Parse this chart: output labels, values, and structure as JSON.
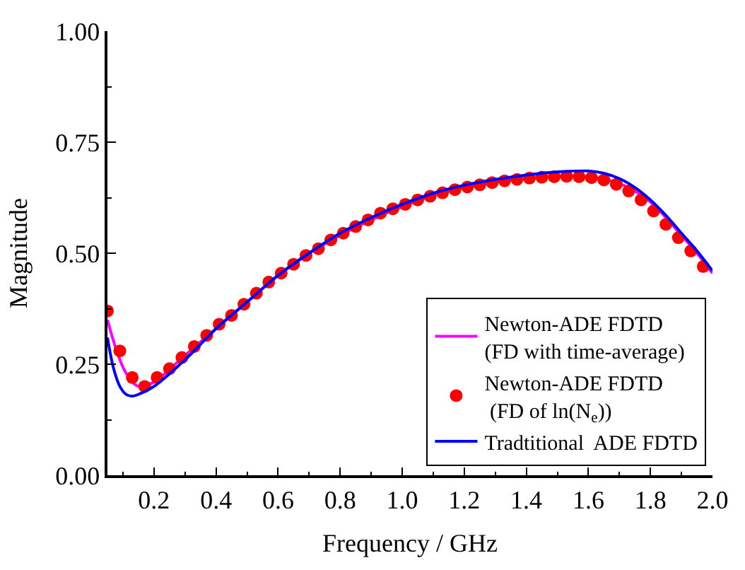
{
  "chart_data": {
    "type": "line",
    "xlabel": "Frequency / GHz",
    "ylabel": "Magnitude",
    "xlim": [
      0.05,
      2.0
    ],
    "xticks": [
      {
        "value": 0.2,
        "label": "0.2"
      },
      {
        "value": 0.4,
        "label": "0.4"
      },
      {
        "value": 0.6,
        "label": "0.6"
      },
      {
        "value": 0.8,
        "label": "0.8"
      },
      {
        "value": 1.0,
        "label": "1.0"
      },
      {
        "value": 1.2,
        "label": "1.2"
      },
      {
        "value": 1.4,
        "label": "1.4"
      },
      {
        "value": 1.6,
        "label": "1.6"
      },
      {
        "value": 1.8,
        "label": "1.8"
      },
      {
        "value": 2.0,
        "label": "2.0"
      }
    ],
    "ylim": [
      0,
      1
    ],
    "yticks": [
      {
        "value": 0,
        "label": "0.00"
      },
      {
        "value": 0.25,
        "label": "0.25"
      },
      {
        "value": 0.5,
        "label": "0.50"
      },
      {
        "value": 0.75,
        "label": "0.75"
      },
      {
        "value": 1.0,
        "label": "1.00"
      }
    ],
    "grid": false,
    "legend": "bottom right",
    "series": [
      {
        "name": "Newton-ADE FDTD\n(FD with time-average)",
        "color": "#ff00ff",
        "x": [
          0.05,
          0.08,
          0.11,
          0.15,
          0.2,
          0.3,
          0.4,
          0.5,
          0.6,
          0.7,
          0.8,
          0.9,
          1.0,
          1.1,
          1.2,
          1.3,
          1.4,
          1.5,
          1.6,
          1.65,
          1.7,
          1.75,
          1.8,
          1.85,
          1.9,
          1.95,
          2.0
        ],
        "values": [
          0.35,
          0.28,
          0.23,
          0.2,
          0.21,
          0.27,
          0.33,
          0.39,
          0.45,
          0.5,
          0.54,
          0.575,
          0.605,
          0.63,
          0.648,
          0.66,
          0.668,
          0.673,
          0.672,
          0.667,
          0.657,
          0.64,
          0.615,
          0.58,
          0.54,
          0.5,
          0.455
        ]
      },
      {
        "name": "Newton-ADE FDTD\n (FD of ln(N$_{e}$))",
        "color": "#ff0000",
        "type": "scatter",
        "marker": "circle",
        "x": [
          0.05,
          0.09,
          0.13,
          0.17,
          0.21,
          0.25,
          0.29,
          0.33,
          0.37,
          0.41,
          0.45,
          0.49,
          0.53,
          0.57,
          0.61,
          0.65,
          0.69,
          0.73,
          0.77,
          0.81,
          0.85,
          0.89,
          0.93,
          0.97,
          1.01,
          1.05,
          1.09,
          1.13,
          1.17,
          1.21,
          1.25,
          1.29,
          1.33,
          1.37,
          1.41,
          1.45,
          1.49,
          1.53,
          1.57,
          1.61,
          1.65,
          1.69,
          1.73,
          1.77,
          1.81,
          1.85,
          1.89,
          1.93,
          1.97
        ],
        "values": [
          0.37,
          0.28,
          0.22,
          0.2,
          0.22,
          0.24,
          0.265,
          0.29,
          0.315,
          0.34,
          0.36,
          0.385,
          0.41,
          0.435,
          0.455,
          0.475,
          0.495,
          0.51,
          0.53,
          0.545,
          0.56,
          0.575,
          0.59,
          0.6,
          0.61,
          0.62,
          0.628,
          0.636,
          0.643,
          0.649,
          0.654,
          0.659,
          0.663,
          0.666,
          0.669,
          0.671,
          0.672,
          0.673,
          0.672,
          0.67,
          0.665,
          0.655,
          0.64,
          0.62,
          0.595,
          0.565,
          0.535,
          0.505,
          0.47
        ]
      },
      {
        "name": "Tradtitional  ADE FDTD",
        "color": "#0000ff",
        "x": [
          0.05,
          0.07,
          0.09,
          0.11,
          0.13,
          0.15,
          0.2,
          0.3,
          0.4,
          0.5,
          0.6,
          0.7,
          0.8,
          0.9,
          1.0,
          1.1,
          1.2,
          1.3,
          1.4,
          1.5,
          1.6,
          1.65,
          1.7,
          1.75,
          1.8,
          1.85,
          1.9,
          1.95,
          2.0
        ],
        "values": [
          0.31,
          0.24,
          0.2,
          0.182,
          0.178,
          0.182,
          0.2,
          0.26,
          0.33,
          0.39,
          0.45,
          0.5,
          0.545,
          0.58,
          0.61,
          0.635,
          0.653,
          0.666,
          0.676,
          0.683,
          0.685,
          0.68,
          0.668,
          0.648,
          0.62,
          0.585,
          0.545,
          0.505,
          0.46
        ]
      }
    ]
  }
}
